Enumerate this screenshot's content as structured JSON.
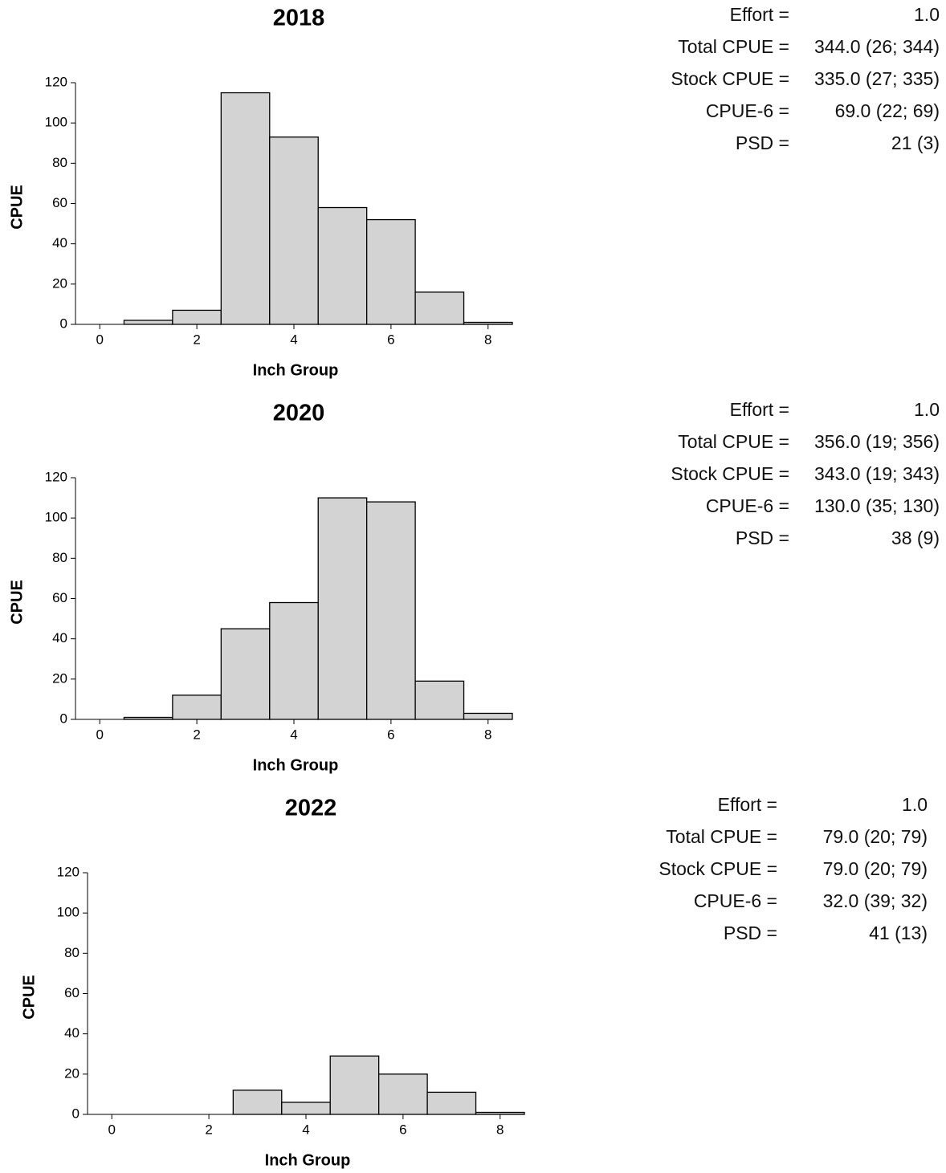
{
  "chart_data": [
    {
      "type": "histogram",
      "title": "2018",
      "xlabel": "Inch Group",
      "ylabel": "CPUE",
      "bins": [
        -0.5,
        0.5,
        1.5,
        2.5,
        3.5,
        4.5,
        5.5,
        6.5,
        7.5,
        8.5
      ],
      "values": [
        0,
        2,
        7,
        115,
        93,
        58,
        52,
        16,
        1
      ],
      "color": "#d3d3d3",
      "xlim": [
        -0.5,
        8.5
      ],
      "xticks": [
        0,
        2,
        4,
        6,
        8
      ],
      "ylim": [
        0,
        120
      ],
      "yticks": [
        0,
        20,
        40,
        60,
        80,
        100,
        120
      ],
      "stats": [
        {
          "label": "Effort =",
          "value": "1.0"
        },
        {
          "label": "Total CPUE =",
          "value": "344.0 (26; 344)"
        },
        {
          "label": "Stock CPUE =",
          "value": "335.0 (27; 335)"
        },
        {
          "label": "CPUE-6 =",
          "value": "69.0 (22; 69)"
        },
        {
          "label": "PSD =",
          "value": "21 (3)"
        }
      ]
    },
    {
      "type": "histogram",
      "title": "2020",
      "xlabel": "Inch Group",
      "ylabel": "CPUE",
      "bins": [
        -0.5,
        0.5,
        1.5,
        2.5,
        3.5,
        4.5,
        5.5,
        6.5,
        7.5,
        8.5
      ],
      "values": [
        0,
        1,
        12,
        45,
        58,
        110,
        108,
        19,
        3
      ],
      "color": "#d3d3d3",
      "xlim": [
        -0.5,
        8.5
      ],
      "xticks": [
        0,
        2,
        4,
        6,
        8
      ],
      "ylim": [
        0,
        120
      ],
      "yticks": [
        0,
        20,
        40,
        60,
        80,
        100,
        120
      ],
      "stats": [
        {
          "label": "Effort =",
          "value": "1.0"
        },
        {
          "label": "Total CPUE =",
          "value": "356.0 (19; 356)"
        },
        {
          "label": "Stock CPUE =",
          "value": "343.0 (19; 343)"
        },
        {
          "label": "CPUE-6 =",
          "value": "130.0 (35; 130)"
        },
        {
          "label": "PSD =",
          "value": "38 (9)"
        }
      ]
    },
    {
      "type": "histogram",
      "title": "2022",
      "xlabel": "Inch Group",
      "ylabel": "CPUE",
      "bins": [
        -0.5,
        0.5,
        1.5,
        2.5,
        3.5,
        4.5,
        5.5,
        6.5,
        7.5,
        8.5
      ],
      "values": [
        0,
        0,
        0,
        12,
        6,
        29,
        20,
        11,
        1
      ],
      "color": "#d3d3d3",
      "xlim": [
        -0.5,
        8.5
      ],
      "xticks": [
        0,
        2,
        4,
        6,
        8
      ],
      "ylim": [
        0,
        120
      ],
      "yticks": [
        0,
        20,
        40,
        60,
        80,
        100,
        120
      ],
      "stats": [
        {
          "label": "Effort =",
          "value": "1.0"
        },
        {
          "label": "Total CPUE =",
          "value": "79.0 (20; 79)"
        },
        {
          "label": "Stock CPUE =",
          "value": "79.0 (20; 79)"
        },
        {
          "label": "CPUE-6 =",
          "value": "32.0 (39; 32)"
        },
        {
          "label": "PSD =",
          "value": "41 (13)"
        }
      ]
    }
  ]
}
